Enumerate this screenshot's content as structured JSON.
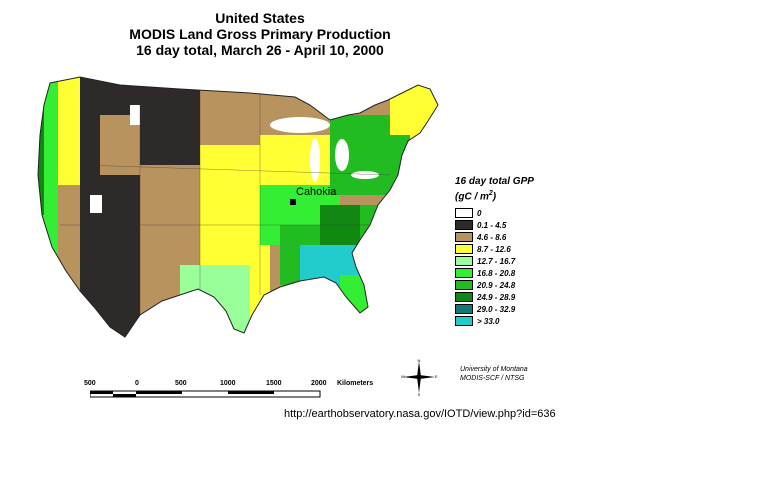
{
  "title": {
    "line1": "United States",
    "line2": "MODIS Land Gross Primary Production",
    "line3": "16 day total, March 26 - April 10, 2000"
  },
  "legend": {
    "title": "16 day total GPP",
    "unit_main": "(gC / m",
    "unit_sup": "2",
    "unit_end": ")",
    "items": [
      {
        "label": "0",
        "color": "#ffffff"
      },
      {
        "label": "0.1 - 4.5",
        "color": "#2e2a2a"
      },
      {
        "label": "4.6 - 8.6",
        "color": "#b8935e"
      },
      {
        "label": "8.7 - 12.6",
        "color": "#ffff33"
      },
      {
        "label": "12.7 - 16.7",
        "color": "#99ff99"
      },
      {
        "label": "16.8 - 20.8",
        "color": "#33ee33"
      },
      {
        "label": "20.9 - 24.8",
        "color": "#22bb22"
      },
      {
        "label": "24.9 - 28.9",
        "color": "#118811"
      },
      {
        "label": "29.0 - 32.9",
        "color": "#117777"
      },
      {
        "label": "> 33.0",
        "color": "#22cccc"
      }
    ]
  },
  "city": "Cahokia",
  "scale": {
    "labels": [
      "500",
      "0",
      "500",
      "1000",
      "1500",
      "2000"
    ],
    "unit": "Kilometers"
  },
  "compass": {
    "n": "N",
    "s": "S",
    "e": "E",
    "w": "W"
  },
  "credit": {
    "line1": "University of Montana",
    "line2": "MODIS-SCF / NTSG"
  },
  "url": "http://earthobservatory.nasa.gov/IOTD/view.php?id=636"
}
